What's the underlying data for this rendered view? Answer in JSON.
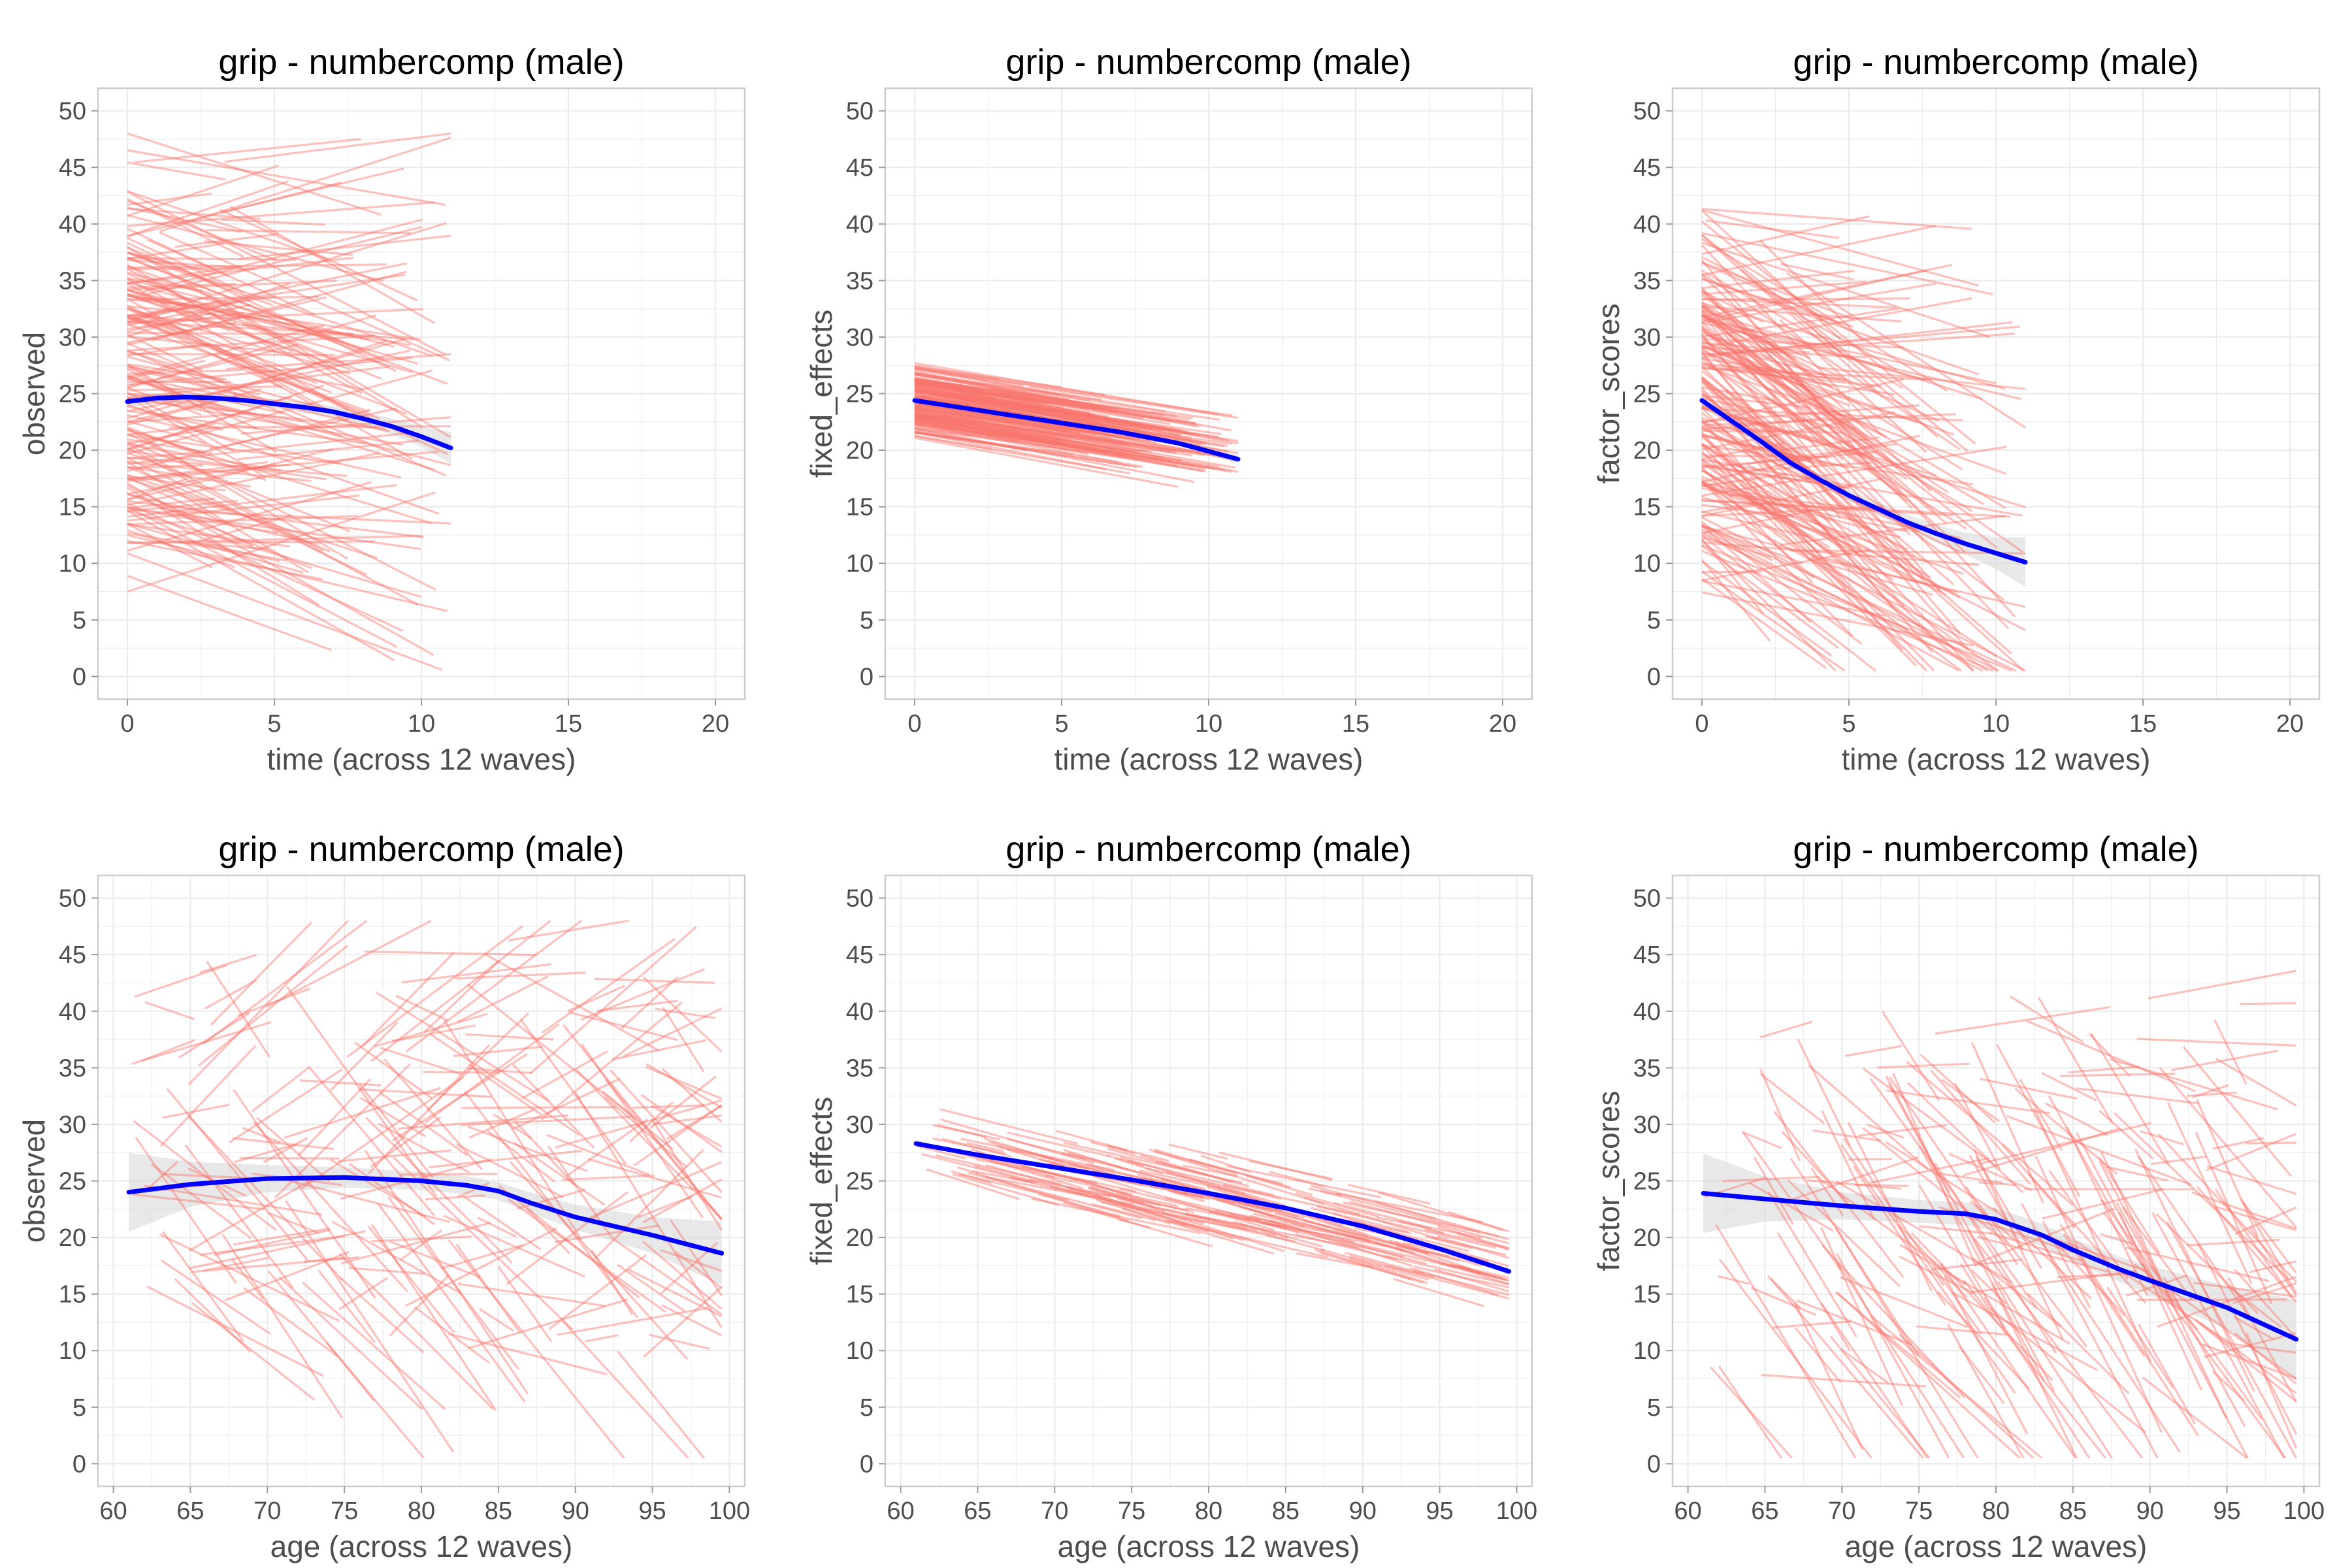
{
  "colors": {
    "individual_lines": "#f8766d",
    "trend_line": "#0000ff",
    "confidence_band": "#d9d9d9",
    "grid": "#ebebeb",
    "panel_border": "#cccccc"
  },
  "chart_data": [
    {
      "type": "line",
      "title": "grip - numbercomp (male)",
      "xlabel": "time (across 12 waves)",
      "ylabel": "observed",
      "xlim": [
        -1,
        21
      ],
      "ylim": [
        -2,
        52
      ],
      "xticks": [
        0,
        5,
        10,
        15,
        20
      ],
      "yticks": [
        0,
        5,
        10,
        15,
        20,
        25,
        30,
        35,
        40,
        45,
        50
      ],
      "grid": true,
      "legend": "none",
      "individual_trajectories": {
        "count": 230,
        "x_range": [
          0,
          11
        ],
        "start_y_range": [
          7,
          48
        ],
        "slope_range": [
          -1.6,
          0.9
        ]
      },
      "series": [
        {
          "x": [
            0,
            1,
            2,
            3,
            4,
            5,
            6,
            7,
            8,
            9,
            10,
            11
          ],
          "y": [
            24.3,
            24.6,
            24.7,
            24.6,
            24.4,
            24.1,
            23.8,
            23.4,
            22.8,
            22.1,
            21.2,
            20.2
          ],
          "band": [
            0.5,
            0.4,
            0.4,
            0.4,
            0.4,
            0.4,
            0.5,
            0.5,
            0.6,
            0.7,
            0.9,
            1.4
          ]
        }
      ]
    },
    {
      "type": "line",
      "title": "grip - numbercomp (male)",
      "xlabel": "time (across 12 waves)",
      "ylabel": "fixed_effects",
      "xlim": [
        -1,
        21
      ],
      "ylim": [
        -2,
        52
      ],
      "xticks": [
        0,
        5,
        10,
        15,
        20
      ],
      "yticks": [
        0,
        5,
        10,
        15,
        20,
        25,
        30,
        35,
        40,
        45,
        50
      ],
      "grid": true,
      "legend": "none",
      "individual_trajectories": {
        "count": 200,
        "x_range": [
          0,
          11
        ],
        "start_y_range": [
          21.5,
          28.5
        ],
        "slope_range": [
          -0.5,
          -0.35
        ]
      },
      "series": [
        {
          "x": [
            0,
            1,
            2,
            3,
            4,
            5,
            6,
            7,
            8,
            9,
            10,
            11
          ],
          "y": [
            24.4,
            24.0,
            23.6,
            23.2,
            22.8,
            22.4,
            22.0,
            21.6,
            21.1,
            20.6,
            19.9,
            19.2
          ],
          "band": [
            0.2,
            0.15,
            0.15,
            0.15,
            0.15,
            0.15,
            0.15,
            0.15,
            0.2,
            0.2,
            0.3,
            0.4
          ]
        }
      ]
    },
    {
      "type": "line",
      "title": "grip - numbercomp (male)",
      "xlabel": "time (across 12 waves)",
      "ylabel": "factor_scores",
      "xlim": [
        -1,
        21
      ],
      "ylim": [
        -2,
        52
      ],
      "xticks": [
        0,
        5,
        10,
        15,
        20
      ],
      "yticks": [
        0,
        5,
        10,
        15,
        20,
        25,
        30,
        35,
        40,
        45,
        50
      ],
      "grid": true,
      "legend": "none",
      "individual_trajectories": {
        "count": 230,
        "x_range": [
          0,
          11
        ],
        "start_y_range": [
          6,
          42
        ],
        "slope_range": [
          -3.2,
          0.6
        ]
      },
      "series": [
        {
          "x": [
            0,
            1,
            2,
            3,
            4,
            5,
            6,
            7,
            8,
            9,
            10,
            11
          ],
          "y": [
            24.4,
            22.6,
            20.8,
            18.9,
            17.4,
            16.0,
            14.8,
            13.6,
            12.6,
            11.7,
            10.9,
            10.1
          ],
          "band": [
            0.6,
            0.5,
            0.5,
            0.5,
            0.5,
            0.5,
            0.6,
            0.7,
            0.8,
            1.0,
            1.4,
            2.2
          ]
        }
      ]
    },
    {
      "type": "line",
      "title": "grip - numbercomp (male)",
      "xlabel": "age (across 12 waves)",
      "ylabel": "observed",
      "xlim": [
        59,
        101
      ],
      "ylim": [
        -2,
        52
      ],
      "xticks": [
        60,
        65,
        70,
        75,
        80,
        85,
        90,
        95,
        100
      ],
      "yticks": [
        0,
        5,
        10,
        15,
        20,
        25,
        30,
        35,
        40,
        45,
        50
      ],
      "grid": true,
      "legend": "none",
      "individual_trajectories": {
        "count": 230,
        "x_range": [
          61,
          99.5
        ],
        "start_y_range": [
          8,
          47
        ],
        "slope_range": [
          -2.2,
          1.5
        ]
      },
      "series": [
        {
          "x": [
            61,
            65,
            70,
            75,
            80,
            83,
            85,
            87,
            90,
            95,
            99.5
          ],
          "y": [
            24.0,
            24.7,
            25.2,
            25.3,
            25.0,
            24.6,
            24.1,
            23.1,
            21.8,
            20.2,
            18.6
          ],
          "band": [
            3.5,
            2.0,
            1.2,
            0.9,
            0.8,
            0.8,
            0.8,
            0.9,
            1.1,
            1.6,
            2.8
          ]
        }
      ]
    },
    {
      "type": "line",
      "title": "grip - numbercomp (male)",
      "xlabel": "age (across 12 waves)",
      "ylabel": "fixed_effects",
      "xlim": [
        59,
        101
      ],
      "ylim": [
        -2,
        52
      ],
      "xticks": [
        60,
        65,
        70,
        75,
        80,
        85,
        90,
        95,
        100
      ],
      "yticks": [
        0,
        5,
        10,
        15,
        20,
        25,
        30,
        35,
        40,
        45,
        50
      ],
      "grid": true,
      "legend": "none",
      "individual_trajectories": {
        "count": 200,
        "x_range": [
          61,
          99.5
        ],
        "start_y_range": [
          21,
          29
        ],
        "slope_range": [
          -0.45,
          -0.25
        ]
      },
      "series": [
        {
          "x": [
            61,
            65,
            70,
            75,
            80,
            85,
            90,
            95,
            99.5
          ],
          "y": [
            28.3,
            27.3,
            26.2,
            25.1,
            23.9,
            22.6,
            21.0,
            19.0,
            17.0
          ],
          "band": [
            0.2,
            0.15,
            0.1,
            0.1,
            0.1,
            0.1,
            0.1,
            0.15,
            0.3
          ]
        }
      ]
    },
    {
      "type": "line",
      "title": "grip - numbercomp (male)",
      "xlabel": "age (across 12 waves)",
      "ylabel": "factor_scores",
      "xlim": [
        59,
        101
      ],
      "ylim": [
        -2,
        52
      ],
      "xticks": [
        60,
        65,
        70,
        75,
        80,
        85,
        90,
        95,
        100
      ],
      "yticks": [
        0,
        5,
        10,
        15,
        20,
        25,
        30,
        35,
        40,
        45,
        50
      ],
      "grid": true,
      "legend": "none",
      "individual_trajectories": {
        "count": 230,
        "x_range": [
          61,
          99.5
        ],
        "start_y_range": [
          6,
          42
        ],
        "slope_range": [
          -3.2,
          0.6
        ]
      },
      "series": [
        {
          "x": [
            61,
            65,
            70,
            75,
            78,
            80,
            83,
            85,
            88,
            90,
            95,
            99.5
          ],
          "y": [
            23.9,
            23.4,
            22.8,
            22.3,
            22.1,
            21.6,
            20.2,
            18.9,
            17.2,
            16.2,
            13.8,
            11.0
          ],
          "band": [
            3.5,
            2.0,
            1.2,
            1.0,
            1.0,
            1.0,
            1.0,
            1.0,
            1.1,
            1.3,
            1.9,
            3.5
          ]
        }
      ]
    }
  ]
}
